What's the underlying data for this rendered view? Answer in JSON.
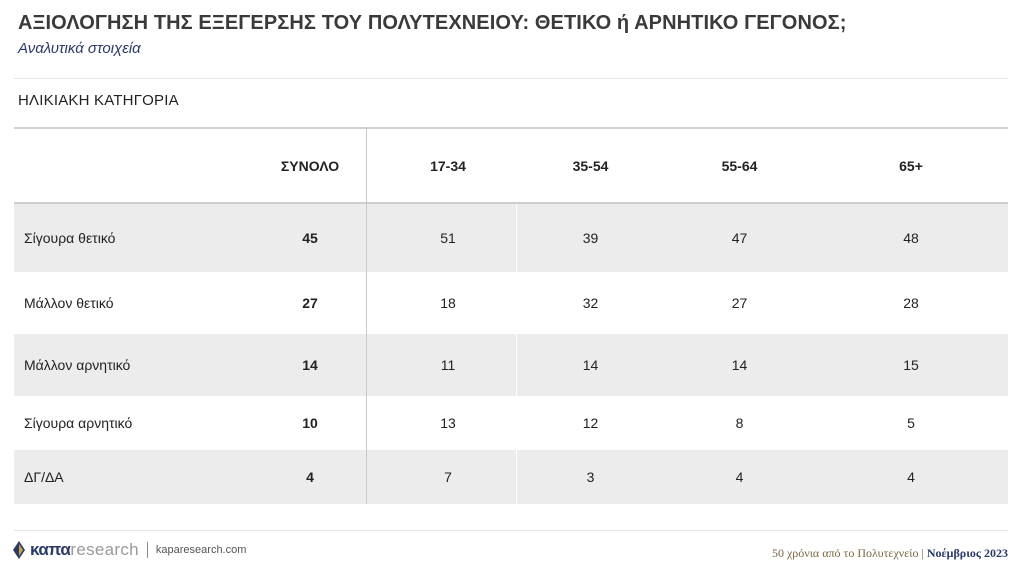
{
  "header": {
    "title": "ΑΞΙΟΛΟΓΗΣΗ ΤΗΣ ΕΞΕΓΕΡΣΗΣ ΤΟΥ ΠΟΛΥΤΕΧΝΕΙΟΥ: ΘΕΤΙΚΟ ή ΑΡΝΗΤΙΚΟ ΓΕΓΟΝΟΣ;",
    "subtitle": "Αναλυτικά στοιχεία"
  },
  "section_label": "ΗΛΙΚΙΑΚΗ ΚΑΤΗΓΟΡΙΑ",
  "table": {
    "columns": [
      "",
      "ΣΥΝΟΛΟ",
      "17-34",
      "35-54",
      "55-64",
      "65+"
    ],
    "rows": [
      {
        "label": "Σίγουρα θετικό",
        "total": "45",
        "values": [
          "51",
          "39",
          "47",
          "48"
        ]
      },
      {
        "label": "Μάλλον θετικό",
        "total": "27",
        "values": [
          "18",
          "32",
          "27",
          "28"
        ]
      },
      {
        "label": "Μάλλον αρνητικό",
        "total": "14",
        "values": [
          "11",
          "14",
          "14",
          "15"
        ]
      },
      {
        "label": "Σίγουρα αρνητικό",
        "total": "10",
        "values": [
          "13",
          "12",
          "8",
          "5"
        ]
      },
      {
        "label": "ΔΓ/ΔΑ",
        "total": "4",
        "values": [
          "7",
          "3",
          "4",
          "4"
        ]
      }
    ]
  },
  "footer": {
    "brand_kapa": "καπα",
    "brand_research": "research",
    "url": "kaparesearch.com",
    "caption": "50 χρόνια από το Πολυτεχνείο",
    "date": "Νοέμβριος 2023"
  },
  "colors": {
    "accent": "#2b3a67",
    "shade": "#ececec",
    "gold": "#c9a44a"
  }
}
